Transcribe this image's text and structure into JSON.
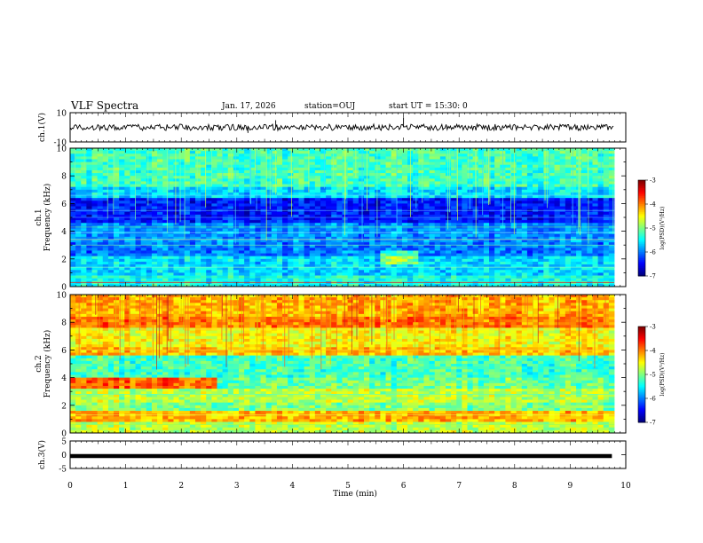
{
  "header": {
    "title": "VLF Spectra",
    "date": "Jan. 17, 2026",
    "station": "station=OUJ",
    "start_ut": "start UT =  15:30: 0"
  },
  "chart_data": [
    {
      "type": "line",
      "panel": "ch1-waveform",
      "ylabel": "ch.1(V)",
      "ylim": [
        -10,
        10
      ],
      "yticks": [
        10,
        -10
      ],
      "xlim": [
        0,
        10
      ],
      "description_values": {
        "baseline": 0
      }
    },
    {
      "type": "heatmap",
      "panel": "ch1-spectrogram",
      "ylabel": "ch.1\nFrequency (kHz)",
      "ylabel_line1": "ch.1",
      "ylabel_line2": "Frequency (kHz)",
      "ylim": [
        0,
        10
      ],
      "yticks": [
        0,
        2,
        4,
        6,
        8,
        10
      ],
      "xlim": [
        0,
        9.83
      ],
      "colorbar": {
        "label": "log(PSD)(V²/Hz)",
        "range": [
          -7,
          -3
        ],
        "ticks": [
          -3,
          -4,
          -5,
          -6,
          -7
        ]
      }
    },
    {
      "type": "heatmap",
      "panel": "ch2-spectrogram",
      "ylabel": "ch.2\nFrequency (kHz)",
      "ylabel_line1": "ch.2",
      "ylabel_line2": "Frequency (kHz)",
      "ylim": [
        0,
        10
      ],
      "yticks": [
        0,
        2,
        4,
        6,
        8,
        10
      ],
      "xlim": [
        0,
        9.83
      ],
      "colorbar": {
        "label": "log(PSD)(V²/Hz)",
        "range": [
          -7,
          -3
        ],
        "ticks": [
          -3,
          -4,
          -5,
          -6,
          -7
        ]
      }
    },
    {
      "type": "line",
      "panel": "ch3-waveform",
      "ylabel": "ch.3(V)",
      "ylim": [
        -5,
        5
      ],
      "yticks": [
        5,
        0,
        -5
      ],
      "xlim": [
        0,
        10
      ],
      "x": [
        0,
        9.83
      ],
      "y": [
        -0.5,
        -0.5
      ],
      "xlabel": "Time (min)",
      "xticks": [
        0,
        1,
        2,
        3,
        4,
        5,
        6,
        7,
        8,
        9,
        10
      ]
    }
  ],
  "colors": {
    "bg": "#ffffff",
    "axis": "#000000"
  }
}
